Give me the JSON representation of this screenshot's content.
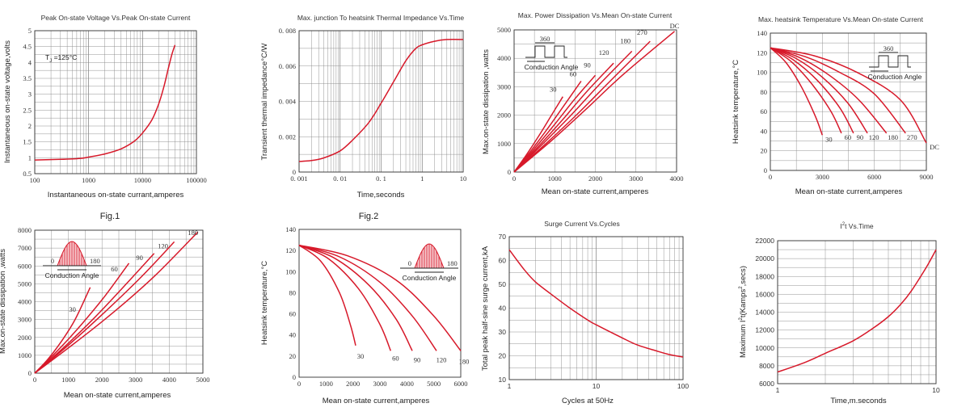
{
  "figure_labels": [
    "Fig.1",
    "Fig.2"
  ],
  "chart_data": [
    {
      "type": "line",
      "title": "Peak On-state Voltage Vs.Peak On-state Current",
      "xlabel": "Instantaneous on-state currant,amperes",
      "ylabel": "Instantaneous on-state voltage,volts",
      "xscale": "log",
      "xlim": [
        100,
        100000
      ],
      "ylim": [
        0.5,
        5
      ],
      "xticks": [
        100,
        1000,
        10000,
        100000
      ],
      "xtick_labels": [
        "100",
        "1000",
        "10000",
        "100000"
      ],
      "yticks": [
        0.5,
        1,
        1.5,
        2,
        2.5,
        3,
        3.5,
        4,
        4.5,
        5
      ],
      "ytick_labels": [
        "0.5",
        "1",
        "1.5",
        "2",
        "2.5",
        "3",
        "3.5",
        "4",
        "4.5",
        "5"
      ],
      "annotation": "T =125°C",
      "annotation_sub": "J",
      "grid": true,
      "series": [
        {
          "label": "",
          "points": [
            [
              100,
              0.93
            ],
            [
              300,
              0.95
            ],
            [
              700,
              0.98
            ],
            [
              1000,
              1.02
            ],
            [
              2000,
              1.12
            ],
            [
              4000,
              1.28
            ],
            [
              7000,
              1.52
            ],
            [
              10000,
              1.78
            ],
            [
              15000,
              2.2
            ],
            [
              20000,
              2.7
            ],
            [
              25000,
              3.25
            ],
            [
              30000,
              3.8
            ],
            [
              35000,
              4.25
            ],
            [
              40000,
              4.55
            ]
          ]
        }
      ]
    },
    {
      "type": "line",
      "title": "Max. junction To heatsink Thermal Impedance Vs.Time",
      "xlabel": "Time,seconds",
      "ylabel": "Transient thermal impedance°C/W",
      "xscale": "log",
      "xlim": [
        0.001,
        10
      ],
      "ylim": [
        0,
        0.008
      ],
      "xticks": [
        0.001,
        0.01,
        0.1,
        1,
        10
      ],
      "xtick_labels": [
        "0. 001",
        "0. 01",
        "0. 1",
        "1",
        "10"
      ],
      "yticks": [
        0,
        0.002,
        0.004,
        0.006,
        0.008
      ],
      "ytick_labels": [
        "0",
        "0. 002",
        "0. 004",
        "0. 006",
        "0. 008"
      ],
      "grid": true,
      "series": [
        {
          "label": "",
          "points": [
            [
              0.001,
              0.0006
            ],
            [
              0.002,
              0.00065
            ],
            [
              0.004,
              0.0008
            ],
            [
              0.01,
              0.0012
            ],
            [
              0.02,
              0.0018
            ],
            [
              0.05,
              0.0028
            ],
            [
              0.1,
              0.0039
            ],
            [
              0.2,
              0.0051
            ],
            [
              0.4,
              0.0063
            ],
            [
              0.7,
              0.007
            ],
            [
              1,
              0.0072
            ],
            [
              2,
              0.0074
            ],
            [
              4,
              0.0075
            ],
            [
              10,
              0.0075
            ]
          ]
        }
      ]
    },
    {
      "type": "line",
      "title": "Max. Power Dissipation Vs.Mean On-state Current",
      "xlabel": "Mean on-state current,amperes",
      "ylabel": "Max.on-state dissipation ,watts",
      "xlim": [
        0,
        4000
      ],
      "ylim": [
        0,
        5000
      ],
      "xticks": [
        0,
        1000,
        2000,
        3000,
        4000
      ],
      "yticks": [
        0,
        1000,
        2000,
        3000,
        4000,
        5000
      ],
      "grid": true,
      "inset_note": "Conduction Angle",
      "inset_value": "360",
      "series": [
        {
          "label": "30",
          "points": [
            [
              0,
              0
            ],
            [
              300,
              600
            ],
            [
              600,
              1250
            ],
            [
              900,
              1950
            ],
            [
              1200,
              2650
            ]
          ]
        },
        {
          "label": "60",
          "points": [
            [
              0,
              0
            ],
            [
              400,
              720
            ],
            [
              800,
              1480
            ],
            [
              1200,
              2280
            ],
            [
              1650,
              3200
            ]
          ]
        },
        {
          "label": "90",
          "points": [
            [
              0,
              0
            ],
            [
              500,
              820
            ],
            [
              1000,
              1680
            ],
            [
              1500,
              2580
            ],
            [
              2000,
              3400
            ]
          ]
        },
        {
          "label": "120",
          "points": [
            [
              0,
              0
            ],
            [
              600,
              900
            ],
            [
              1200,
              1850
            ],
            [
              1800,
              2850
            ],
            [
              2450,
              3830
            ]
          ]
        },
        {
          "label": "180",
          "points": [
            [
              0,
              0
            ],
            [
              700,
              980
            ],
            [
              1400,
              2000
            ],
            [
              2100,
              3080
            ],
            [
              2900,
              4250
            ]
          ]
        },
        {
          "label": "270",
          "points": [
            [
              0,
              0
            ],
            [
              800,
              1020
            ],
            [
              1600,
              2100
            ],
            [
              2400,
              3250
            ],
            [
              3350,
              4600
            ]
          ]
        },
        {
          "label": "DC",
          "points": [
            [
              0,
              0
            ],
            [
              900,
              1080
            ],
            [
              1800,
              2250
            ],
            [
              2700,
              3450
            ],
            [
              3950,
              4950
            ]
          ]
        }
      ]
    },
    {
      "type": "line",
      "title": "Max. heatsink Temperature Vs.Mean On-state Current",
      "xlabel": "Mean on-state current,amperes",
      "ylabel": "Heatsink temperature,°C",
      "xlim": [
        0,
        9000
      ],
      "ylim": [
        0,
        140
      ],
      "xticks": [
        0,
        3000,
        6000,
        9000
      ],
      "yticks": [
        0,
        20,
        40,
        60,
        80,
        100,
        120,
        140
      ],
      "grid": true,
      "inset_note": "Conduction Angle",
      "inset_value": "360",
      "series": [
        {
          "label": "30",
          "points": [
            [
              0,
              125
            ],
            [
              900,
              110
            ],
            [
              1800,
              85
            ],
            [
              2600,
              55
            ],
            [
              3000,
              36
            ]
          ]
        },
        {
          "label": "60",
          "points": [
            [
              0,
              125
            ],
            [
              1200,
              111
            ],
            [
              2400,
              88
            ],
            [
              3500,
              60
            ],
            [
              4100,
              38
            ]
          ]
        },
        {
          "label": "90",
          "points": [
            [
              0,
              125
            ],
            [
              1300,
              113
            ],
            [
              2700,
              92
            ],
            [
              4000,
              64
            ],
            [
              4800,
              38
            ]
          ]
        },
        {
          "label": "120",
          "points": [
            [
              0,
              125
            ],
            [
              1500,
              114
            ],
            [
              3000,
              95
            ],
            [
              4500,
              68
            ],
            [
              5600,
              38
            ]
          ]
        },
        {
          "label": "180",
          "points": [
            [
              0,
              125
            ],
            [
              1700,
              115
            ],
            [
              3400,
              97
            ],
            [
              5100,
              72
            ],
            [
              6700,
              38
            ]
          ]
        },
        {
          "label": "270",
          "points": [
            [
              0,
              125
            ],
            [
              2000,
              116
            ],
            [
              4000,
              100
            ],
            [
              6000,
              78
            ],
            [
              7800,
              38
            ]
          ]
        },
        {
          "label": "DC",
          "points": [
            [
              0,
              125
            ],
            [
              2500,
              117
            ],
            [
              5000,
              100
            ],
            [
              7500,
              72
            ],
            [
              9000,
              28
            ]
          ]
        }
      ]
    },
    {
      "type": "line",
      "title": "",
      "xlabel": "Mean on-state current,amperes",
      "ylabel": "Max.on-state dissipation ,watts",
      "xlim": [
        0,
        5000
      ],
      "ylim": [
        0,
        8000
      ],
      "xticks": [
        0,
        1000,
        2000,
        3000,
        4000,
        5000
      ],
      "yticks": [
        0,
        1000,
        2000,
        3000,
        4000,
        5000,
        6000,
        7000,
        8000
      ],
      "grid": true,
      "inset_note": "Conduction Angle",
      "inset_values": [
        "0",
        "180"
      ],
      "series": [
        {
          "label": "30",
          "points": [
            [
              0,
              0
            ],
            [
              400,
              800
            ],
            [
              800,
              1800
            ],
            [
              1200,
              3000
            ],
            [
              1650,
              4800
            ]
          ]
        },
        {
          "label": "60",
          "points": [
            [
              0,
              0
            ],
            [
              700,
              1300
            ],
            [
              1400,
              2750
            ],
            [
              2100,
              4350
            ],
            [
              2800,
              6150
            ]
          ]
        },
        {
          "label": "90",
          "points": [
            [
              0,
              0
            ],
            [
              900,
              1500
            ],
            [
              1800,
              3150
            ],
            [
              2700,
              4950
            ],
            [
              3550,
              6700
            ]
          ]
        },
        {
          "label": "120",
          "points": [
            [
              0,
              0
            ],
            [
              1050,
              1650
            ],
            [
              2100,
              3450
            ],
            [
              3150,
              5350
            ],
            [
              4150,
              7350
            ]
          ]
        },
        {
          "label": "180",
          "points": [
            [
              0,
              0
            ],
            [
              1200,
              1700
            ],
            [
              2400,
              3500
            ],
            [
              3600,
              5500
            ],
            [
              4850,
              7900
            ]
          ]
        }
      ]
    },
    {
      "type": "line",
      "title": "",
      "xlabel": "Mean on-state current,amperes",
      "ylabel": "Heatsink temperature,°C",
      "xlim": [
        0,
        6000
      ],
      "ylim": [
        0,
        140
      ],
      "xticks": [
        0,
        1000,
        2000,
        3000,
        4000,
        5000,
        6000
      ],
      "yticks": [
        0,
        20,
        40,
        60,
        80,
        100,
        120,
        140
      ],
      "grid": false,
      "inset_note": "Conduction Angle",
      "inset_values": [
        "0",
        "180"
      ],
      "series": [
        {
          "label": "30",
          "points": [
            [
              0,
              125
            ],
            [
              800,
              110
            ],
            [
              1500,
              80
            ],
            [
              1900,
              50
            ],
            [
              2100,
              30
            ]
          ]
        },
        {
          "label": "60",
          "points": [
            [
              0,
              125
            ],
            [
              1100,
              112
            ],
            [
              2200,
              84
            ],
            [
              3000,
              50
            ],
            [
              3400,
              25
            ]
          ]
        },
        {
          "label": "90",
          "points": [
            [
              0,
              125
            ],
            [
              1300,
              113
            ],
            [
              2600,
              87
            ],
            [
              3600,
              55
            ],
            [
              4200,
              25
            ]
          ]
        },
        {
          "label": "120",
          "points": [
            [
              0,
              125
            ],
            [
              1500,
              114
            ],
            [
              3000,
              90
            ],
            [
              4200,
              58
            ],
            [
              5100,
              25
            ]
          ]
        },
        {
          "label": "180",
          "points": [
            [
              0,
              125
            ],
            [
              1800,
              115
            ],
            [
              3600,
              92
            ],
            [
              5000,
              58
            ],
            [
              6000,
              25
            ]
          ]
        }
      ]
    },
    {
      "type": "line",
      "title": "Surge Current Vs.Cycles",
      "xlabel": "Cycles at 50Hz",
      "ylabel": "Total peak half-sine surge current,kA",
      "xscale": "log",
      "xlim": [
        1,
        100
      ],
      "ylim": [
        10,
        70
      ],
      "xticks": [
        1,
        10,
        100
      ],
      "yticks": [
        10,
        20,
        30,
        40,
        50,
        60,
        70
      ],
      "grid": true,
      "series": [
        {
          "label": "",
          "points": [
            [
              1,
              64.5
            ],
            [
              1.5,
              56
            ],
            [
              2,
              51
            ],
            [
              3,
              46
            ],
            [
              5,
              40
            ],
            [
              8,
              35
            ],
            [
              10,
              33
            ],
            [
              20,
              27.5
            ],
            [
              30,
              24.5
            ],
            [
              50,
              22
            ],
            [
              70,
              20.5
            ],
            [
              100,
              19.5
            ]
          ]
        }
      ]
    },
    {
      "type": "line",
      "title": "I²t Vs.Time",
      "title_parts": [
        "I",
        "2",
        "t Vs.Time"
      ],
      "xlabel": "Time,m.seconds",
      "ylabel_parts": [
        "Maximum I",
        "2",
        "t(Kamps",
        "2",
        ",secs)"
      ],
      "xscale": "log",
      "xlim": [
        1,
        10
      ],
      "ylim": [
        6000,
        22000
      ],
      "xticks": [
        1,
        10
      ],
      "yticks": [
        6000,
        8000,
        10000,
        12000,
        14000,
        16000,
        18000,
        20000,
        22000
      ],
      "grid": true,
      "series": [
        {
          "label": "",
          "points": [
            [
              1,
              7300
            ],
            [
              1.5,
              8400
            ],
            [
              2,
              9400
            ],
            [
              3,
              10800
            ],
            [
              4,
              12200
            ],
            [
              5,
              13500
            ],
            [
              6,
              14900
            ],
            [
              7,
              16400
            ],
            [
              8,
              18000
            ],
            [
              9,
              19500
            ],
            [
              10,
              21000
            ]
          ]
        }
      ]
    }
  ]
}
